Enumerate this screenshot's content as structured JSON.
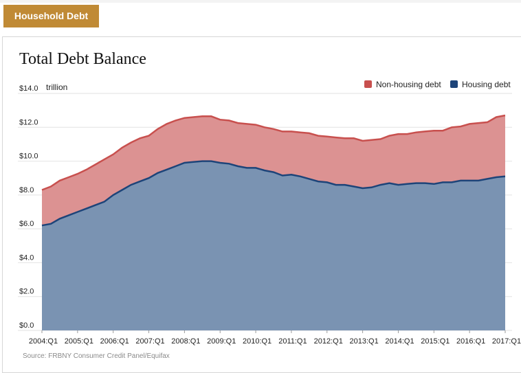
{
  "header": {
    "section_label": "Household Debt"
  },
  "colors": {
    "tab_background": "#c08a35",
    "non_housing_fill": "#dc9292",
    "non_housing_line": "#c8504e",
    "housing_fill": "#7a93b2",
    "housing_line": "#1d4479"
  },
  "chart_data": {
    "type": "area",
    "title": "Total Debt Balance",
    "unit_label": "trillion",
    "stacked": true,
    "ylim": [
      0,
      14
    ],
    "y_ticks": [
      "$0.0",
      "$2.0",
      "$4.0",
      "$6.0",
      "$8.0",
      "$10.0",
      "$12.0",
      "$14.0"
    ],
    "x_tick_labels": [
      "2004:Q1",
      "2005:Q1",
      "2006:Q1",
      "2007:Q1",
      "2008:Q1",
      "2009:Q1",
      "2010:Q1",
      "2011:Q1",
      "2012:Q1",
      "2013:Q1",
      "2014:Q1",
      "2015:Q1",
      "2016:Q1",
      "2017:Q1"
    ],
    "legend_position": "top-right",
    "grid": "horizontal",
    "x": [
      "2004:Q1",
      "2004:Q2",
      "2004:Q3",
      "2004:Q4",
      "2005:Q1",
      "2005:Q2",
      "2005:Q3",
      "2005:Q4",
      "2006:Q1",
      "2006:Q2",
      "2006:Q3",
      "2006:Q4",
      "2007:Q1",
      "2007:Q2",
      "2007:Q3",
      "2007:Q4",
      "2008:Q1",
      "2008:Q2",
      "2008:Q3",
      "2008:Q4",
      "2009:Q1",
      "2009:Q2",
      "2009:Q3",
      "2009:Q4",
      "2010:Q1",
      "2010:Q2",
      "2010:Q3",
      "2010:Q4",
      "2011:Q1",
      "2011:Q2",
      "2011:Q3",
      "2011:Q4",
      "2012:Q1",
      "2012:Q2",
      "2012:Q3",
      "2012:Q4",
      "2013:Q1",
      "2013:Q2",
      "2013:Q3",
      "2013:Q4",
      "2014:Q1",
      "2014:Q2",
      "2014:Q3",
      "2014:Q4",
      "2015:Q1",
      "2015:Q2",
      "2015:Q3",
      "2015:Q4",
      "2016:Q1",
      "2016:Q2",
      "2016:Q3",
      "2016:Q4",
      "2017:Q1"
    ],
    "series": [
      {
        "name": "Housing debt",
        "values": [
          6.2,
          6.3,
          6.6,
          6.8,
          7.0,
          7.2,
          7.4,
          7.6,
          8.0,
          8.3,
          8.6,
          8.8,
          9.0,
          9.3,
          9.5,
          9.7,
          9.9,
          9.95,
          10.0,
          10.0,
          9.9,
          9.85,
          9.7,
          9.6,
          9.6,
          9.45,
          9.35,
          9.15,
          9.2,
          9.1,
          8.95,
          8.8,
          8.75,
          8.6,
          8.6,
          8.5,
          8.4,
          8.45,
          8.6,
          8.7,
          8.6,
          8.65,
          8.7,
          8.7,
          8.65,
          8.75,
          8.75,
          8.85,
          8.85,
          8.85,
          8.95,
          9.05,
          9.1
        ]
      },
      {
        "name": "Non-housing debt",
        "values": [
          2.1,
          2.2,
          2.25,
          2.25,
          2.25,
          2.3,
          2.4,
          2.5,
          2.4,
          2.5,
          2.5,
          2.55,
          2.5,
          2.6,
          2.7,
          2.7,
          2.65,
          2.65,
          2.65,
          2.65,
          2.55,
          2.55,
          2.55,
          2.6,
          2.55,
          2.55,
          2.55,
          2.6,
          2.55,
          2.6,
          2.7,
          2.7,
          2.7,
          2.8,
          2.75,
          2.85,
          2.8,
          2.8,
          2.7,
          2.8,
          3.0,
          2.95,
          3.0,
          3.05,
          3.15,
          3.05,
          3.25,
          3.2,
          3.35,
          3.4,
          3.35,
          3.55,
          3.6
        ]
      }
    ]
  },
  "footer": {
    "source": "Source: FRBNY Consumer Credit Panel/Equifax"
  }
}
